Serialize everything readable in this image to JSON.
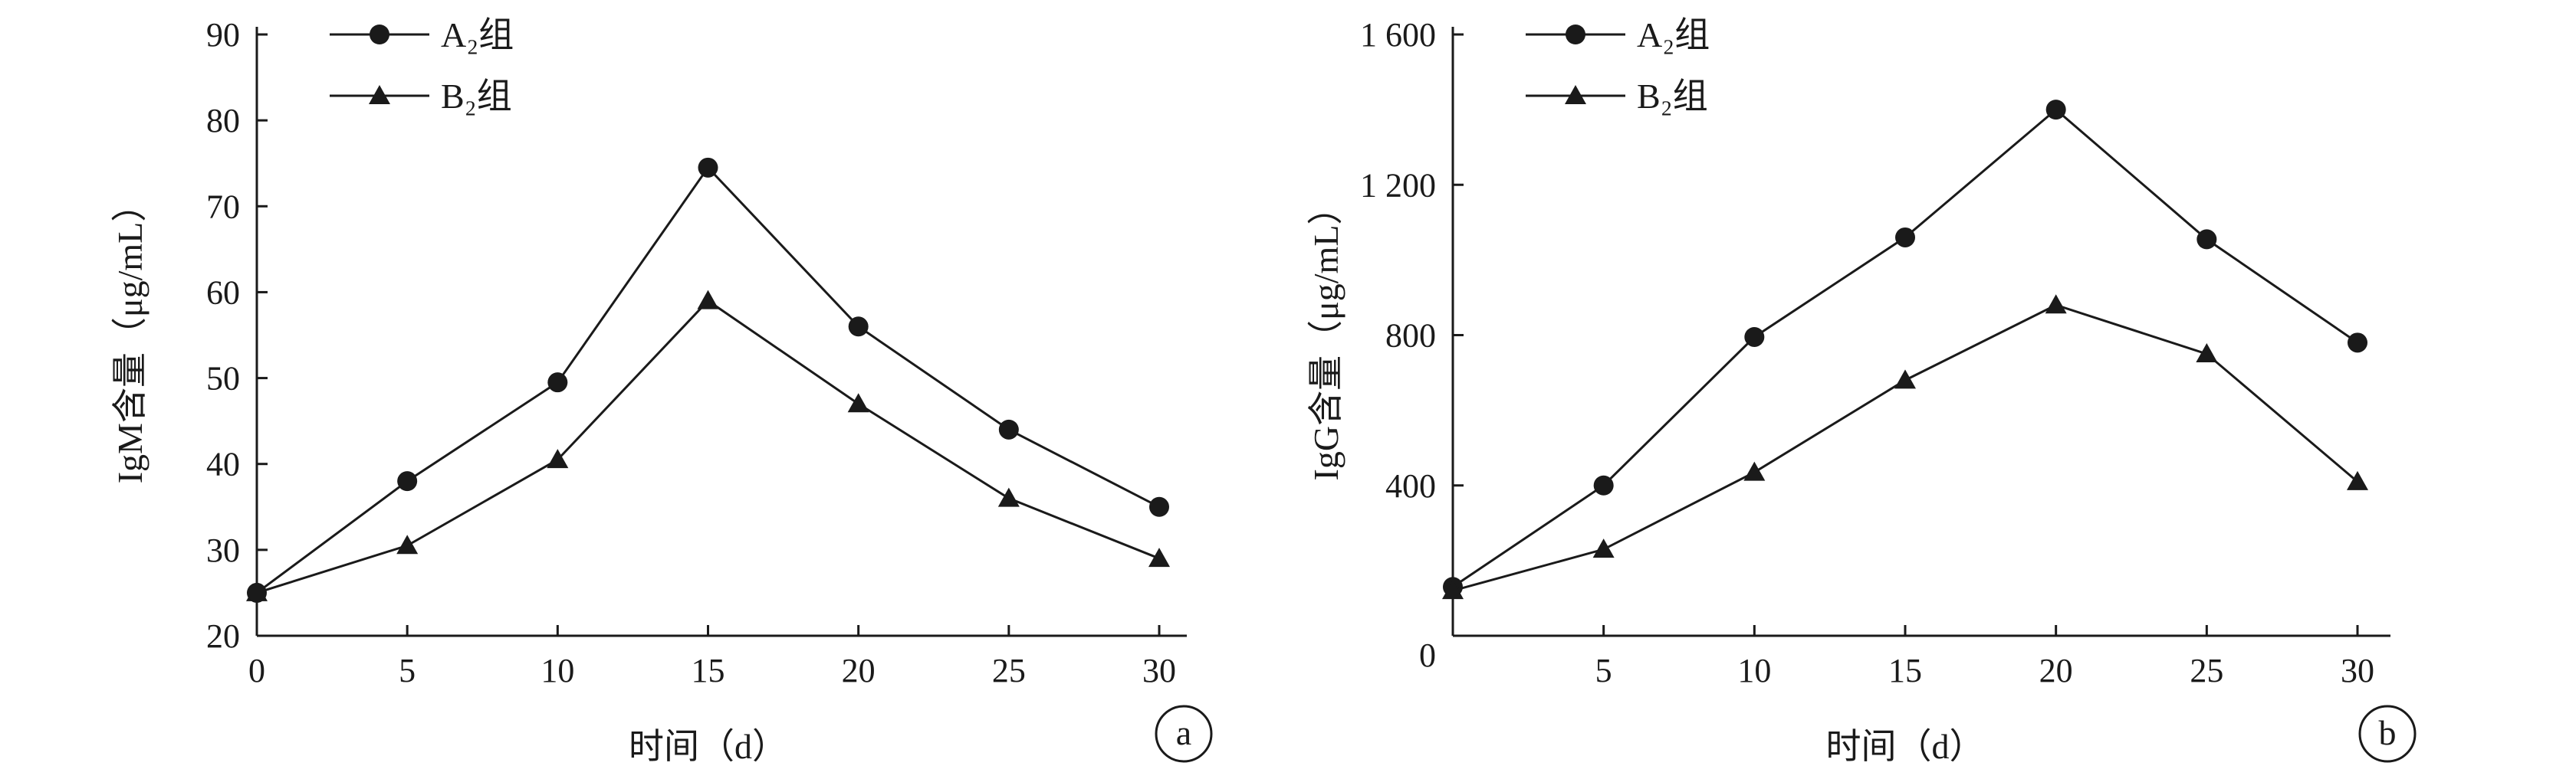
{
  "chart_data": [
    {
      "type": "line",
      "panel_label": "a",
      "ylabel": "IgM含量（μg/mL）",
      "xlabel": "时间（d）",
      "x": [
        0,
        5,
        10,
        15,
        20,
        25,
        30
      ],
      "x_ticks": [
        "0",
        "5",
        "10",
        "15",
        "20",
        "25",
        "30"
      ],
      "y_ticks": [
        "20",
        "30",
        "40",
        "50",
        "60",
        "70",
        "80",
        "90"
      ],
      "xlim": [
        0,
        30
      ],
      "ylim": [
        20,
        90
      ],
      "grid": false,
      "legend_position": "top-left",
      "series": [
        {
          "name": "A₂组",
          "marker": "circle",
          "values": [
            25,
            38,
            49.5,
            74.5,
            56,
            44,
            35
          ]
        },
        {
          "name": "B₂组",
          "marker": "triangle",
          "values": [
            25,
            30.5,
            40.5,
            59,
            47,
            36,
            29
          ]
        }
      ]
    },
    {
      "type": "line",
      "panel_label": "b",
      "ylabel": "IgG含量（μg/mL）",
      "xlabel": "时间（d）",
      "x": [
        0,
        5,
        10,
        15,
        20,
        25,
        30
      ],
      "x_ticks": [
        "0",
        "5",
        "10",
        "15",
        "20",
        "25",
        "30"
      ],
      "y_ticks": [
        "0",
        "400",
        "800",
        "1 200",
        "1 600"
      ],
      "xlim": [
        0,
        30
      ],
      "ylim": [
        0,
        1600
      ],
      "grid": false,
      "legend_position": "top-left",
      "series": [
        {
          "name": "A₂组",
          "marker": "circle",
          "values": [
            130,
            400,
            795,
            1060,
            1400,
            1055,
            780
          ]
        },
        {
          "name": "B₂组",
          "marker": "triangle",
          "values": [
            120,
            230,
            435,
            680,
            880,
            750,
            410
          ]
        }
      ]
    }
  ]
}
